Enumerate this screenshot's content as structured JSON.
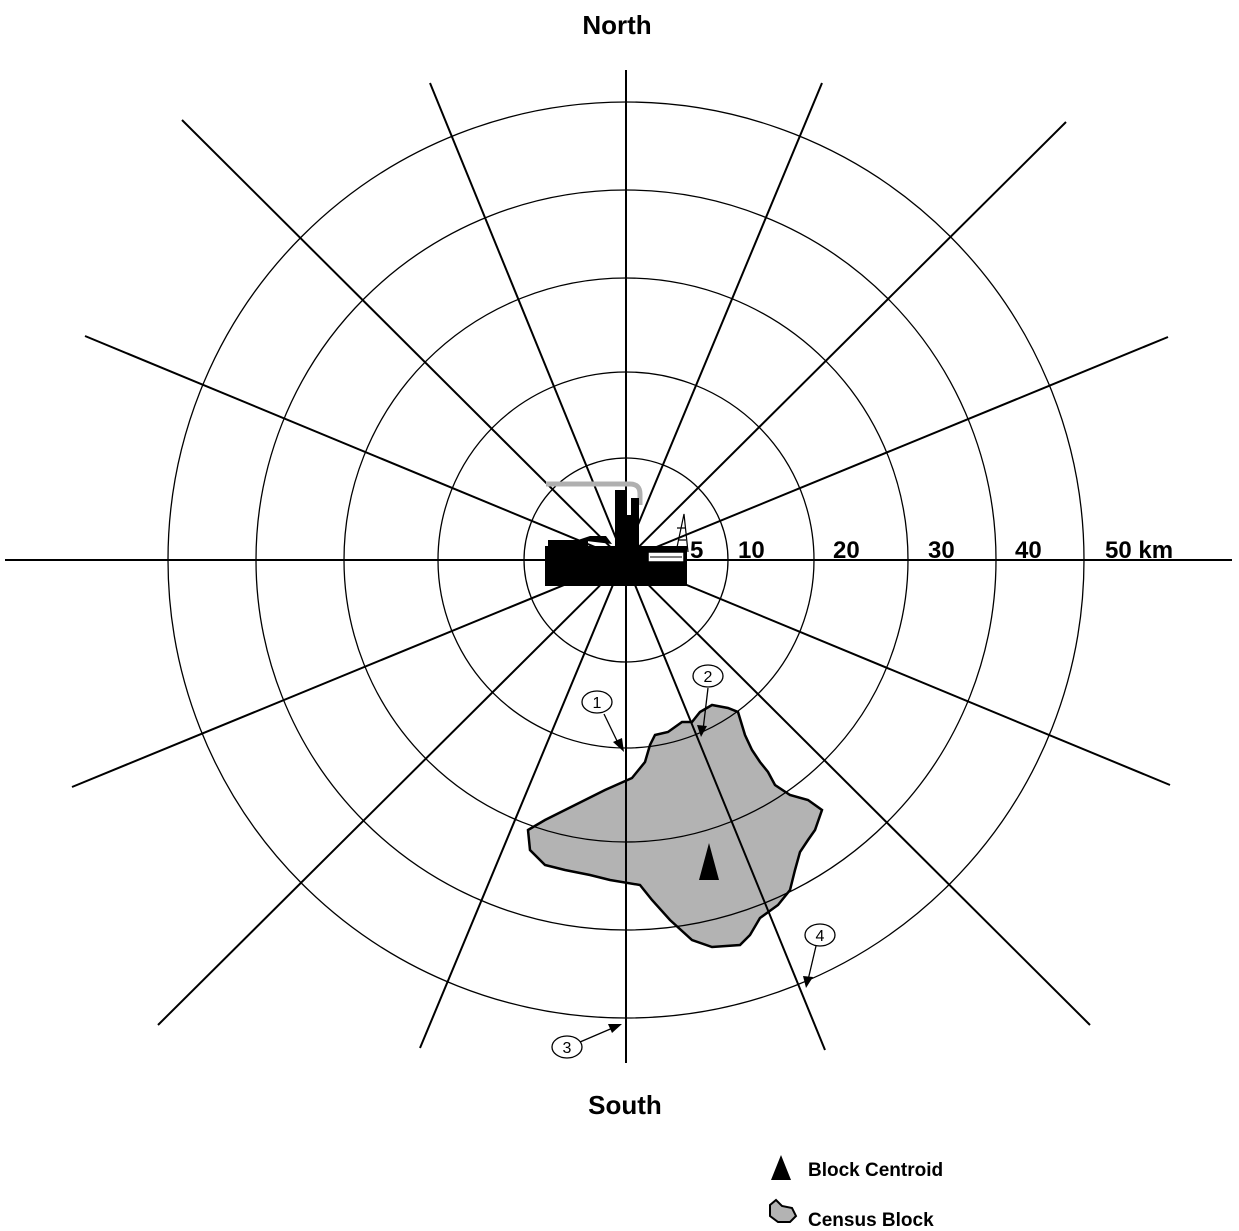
{
  "diagram": {
    "compass": {
      "north": "North",
      "south": "South"
    },
    "rings": {
      "labels": [
        "5",
        "10",
        "20",
        "30",
        "40",
        "50 km"
      ]
    },
    "callouts": [
      "1",
      "2",
      "3",
      "4"
    ],
    "legend": {
      "centroid": {
        "label": "Block Centroid",
        "icon": "filled-triangle"
      },
      "block": {
        "label": "Census Block",
        "icon": "blob-shape"
      }
    },
    "colors": {
      "block_fill": "#b3b3b3",
      "line": "#000000",
      "facility": "#000000",
      "pipe": "#b0b0b0"
    }
  }
}
